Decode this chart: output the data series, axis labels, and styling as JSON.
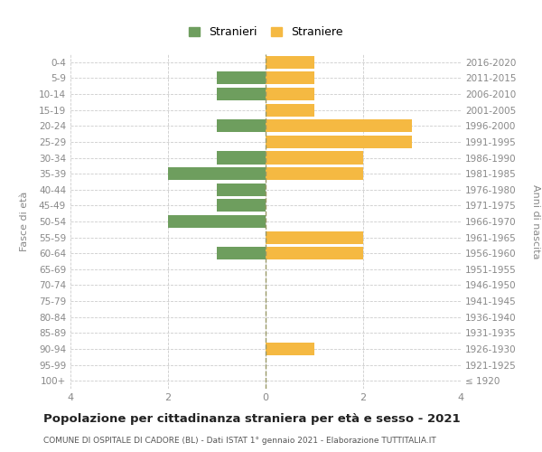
{
  "age_groups": [
    "100+",
    "95-99",
    "90-94",
    "85-89",
    "80-84",
    "75-79",
    "70-74",
    "65-69",
    "60-64",
    "55-59",
    "50-54",
    "45-49",
    "40-44",
    "35-39",
    "30-34",
    "25-29",
    "20-24",
    "15-19",
    "10-14",
    "5-9",
    "0-4"
  ],
  "birth_years": [
    "≤ 1920",
    "1921-1925",
    "1926-1930",
    "1931-1935",
    "1936-1940",
    "1941-1945",
    "1946-1950",
    "1951-1955",
    "1956-1960",
    "1961-1965",
    "1966-1970",
    "1971-1975",
    "1976-1980",
    "1981-1985",
    "1986-1990",
    "1991-1995",
    "1996-2000",
    "2001-2005",
    "2006-2010",
    "2011-2015",
    "2016-2020"
  ],
  "males": [
    0,
    0,
    0,
    0,
    0,
    0,
    0,
    0,
    1,
    0,
    2,
    1,
    1,
    2,
    1,
    0,
    1,
    0,
    1,
    1,
    0
  ],
  "females": [
    0,
    0,
    1,
    0,
    0,
    0,
    0,
    0,
    2,
    2,
    0,
    0,
    0,
    2,
    2,
    3,
    3,
    1,
    1,
    1,
    1
  ],
  "color_males": "#6e9e5e",
  "color_females": "#f5b942",
  "title": "Popolazione per cittadinanza straniera per età e sesso - 2021",
  "subtitle": "COMUNE DI OSPITALE DI CADORE (BL) - Dati ISTAT 1° gennaio 2021 - Elaborazione TUTTITALIA.IT",
  "ylabel_left": "Fasce di età",
  "ylabel_right": "Anni di nascita",
  "legend_males": "Stranieri",
  "legend_females": "Straniere",
  "xlim": 4,
  "background_color": "#ffffff",
  "grid_color": "#cccccc",
  "bar_height": 0.8,
  "tick_color": "#aaaaaa",
  "label_color": "#888888"
}
